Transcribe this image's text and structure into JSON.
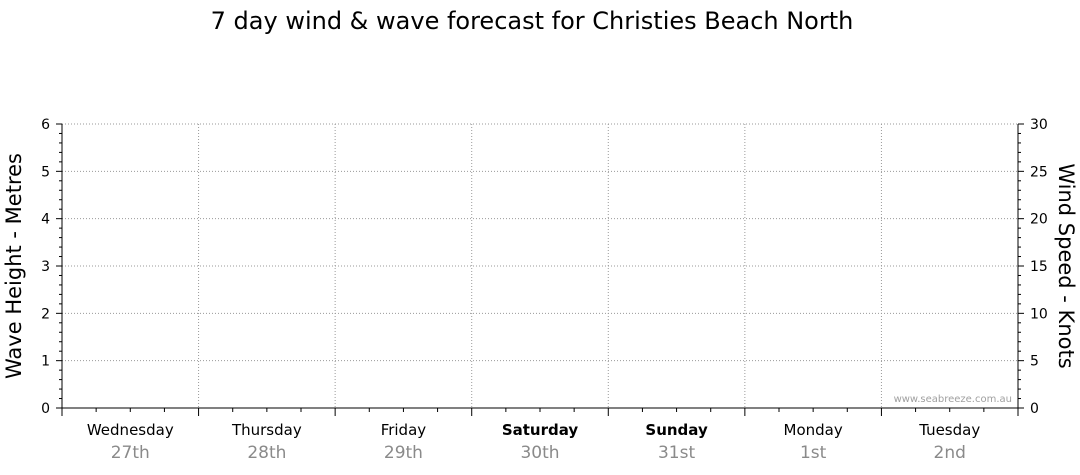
{
  "chart_data": {
    "type": "line",
    "title": "7 day wind & wave forecast for Christies Beach North",
    "ylabel": "Wave Height - Metres",
    "y2label": "Wind Speed - Knots",
    "ylim": [
      0,
      6
    ],
    "y2lim": [
      0,
      30
    ],
    "yticks": [
      "0",
      "1",
      "2",
      "3",
      "4",
      "5",
      "6"
    ],
    "y2ticks": [
      "0",
      "5",
      "10",
      "15",
      "20",
      "25",
      "30"
    ],
    "grid": true,
    "days": [
      {
        "name": "Wednesday",
        "date": "27th",
        "bold": false
      },
      {
        "name": "Thursday",
        "date": "28th",
        "bold": false
      },
      {
        "name": "Friday",
        "date": "29th",
        "bold": false
      },
      {
        "name": "Saturday",
        "date": "30th",
        "bold": true
      },
      {
        "name": "Sunday",
        "date": "31st",
        "bold": true
      },
      {
        "name": "Monday",
        "date": "1st",
        "bold": false
      },
      {
        "name": "Tuesday",
        "date": "2nd",
        "bold": false
      }
    ],
    "series": [],
    "watermark": "www.seabreeze.com.au"
  }
}
